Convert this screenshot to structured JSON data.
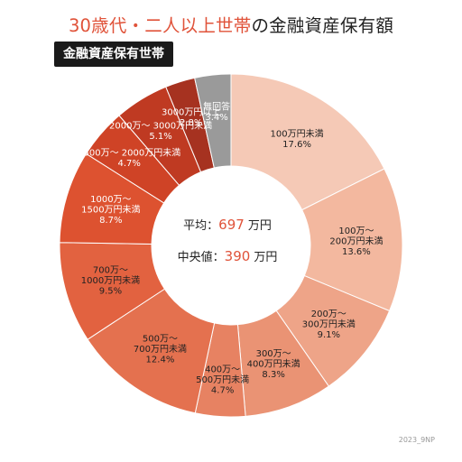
{
  "title": {
    "accent": "30歳代・二人以上世帯",
    "rest": "の金融資産保有額"
  },
  "badge": "金融資産保有世帯",
  "center": {
    "avg_label": "平均：",
    "avg_value": "697",
    "avg_unit": "万円",
    "median_label": "中央値：",
    "median_value": "390",
    "median_unit": "万円"
  },
  "credit": "2023_9NP",
  "chart_data": {
    "type": "pie",
    "title": "30歳代・二人以上世帯の金融資産保有額",
    "subtitle": "金融資産保有世帯",
    "donut": true,
    "unit": "%",
    "slices": [
      {
        "label": [
          "100万円未満"
        ],
        "value_text": "17.6%",
        "value": 17.6,
        "color": "#f5c9b6"
      },
      {
        "label": [
          "100万〜",
          "200万円未満"
        ],
        "value_text": "13.6%",
        "value": 13.6,
        "color": "#f3b89f"
      },
      {
        "label": [
          "200万〜",
          "300万円未満"
        ],
        "value_text": "9.1%",
        "value": 9.1,
        "color": "#eea488"
      },
      {
        "label": [
          "300万〜",
          "400万円未満"
        ],
        "value_text": "8.3%",
        "value": 8.3,
        "color": "#ea9374"
      },
      {
        "label": [
          "400万〜",
          "500万円未満"
        ],
        "value_text": "4.7%",
        "value": 4.7,
        "color": "#e78262"
      },
      {
        "label": [
          "500万〜",
          "700万円未満"
        ],
        "value_text": "12.4%",
        "value": 12.4,
        "color": "#e4714f"
      },
      {
        "label": [
          "700万〜",
          "1000万円未満"
        ],
        "value_text": "9.5%",
        "value": 9.5,
        "color": "#e26240"
      },
      {
        "label": [
          "1000万〜",
          "1500万円未満"
        ],
        "value_text": "8.7%",
        "value": 8.7,
        "color": "#dd5230",
        "light": true
      },
      {
        "label": [
          "1500万〜 2000万円未満"
        ],
        "value_text": "4.7%",
        "value": 4.7,
        "color": "#cf4326",
        "light": true
      },
      {
        "label": [
          "2000万〜 3000万円未満"
        ],
        "value_text": "5.1%",
        "value": 5.1,
        "color": "#bf3a22",
        "light": true
      },
      {
        "label": [
          "3000万円以上"
        ],
        "value_text": "2.8%",
        "value": 2.8,
        "color": "#a63220",
        "light": true
      },
      {
        "label": [
          "無回答"
        ],
        "value_text": "3.4%",
        "value": 3.4,
        "color": "#9a9a9a",
        "light": true
      }
    ]
  }
}
